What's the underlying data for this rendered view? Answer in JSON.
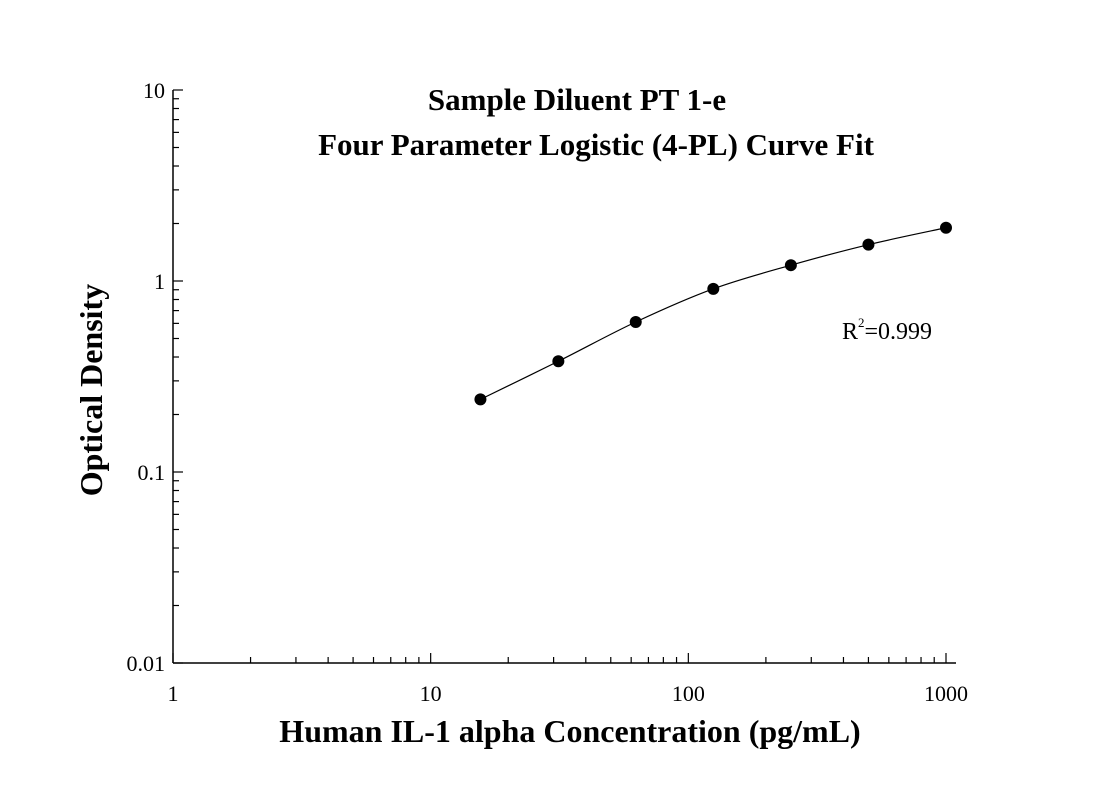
{
  "chart_data": {
    "type": "scatter",
    "title": "Sample Diluent PT 1-e",
    "subtitle": "Four Parameter Logistic (4-PL) Curve Fit",
    "xlabel": "Human IL-1 alpha Concentration (pg/mL)",
    "ylabel": "Optical Density",
    "xscale": "log",
    "yscale": "log",
    "xlim": [
      1,
      1000
    ],
    "ylim": [
      0.01,
      10
    ],
    "x_ticks": [
      "1",
      "10",
      "100",
      "1000"
    ],
    "y_ticks": [
      "0.01",
      "0.1",
      "1",
      "10"
    ],
    "grid": false,
    "legend": "none",
    "annotation": {
      "base": "R",
      "sup": "2",
      "value": "=0.999"
    },
    "series": [
      {
        "x": [
          15.6,
          31.3,
          62.5,
          125,
          250,
          500,
          1000
        ],
        "y": [
          0.24,
          0.38,
          0.61,
          0.91,
          1.21,
          1.55,
          1.9
        ],
        "marker": "circle",
        "color": "#000000"
      }
    ]
  }
}
